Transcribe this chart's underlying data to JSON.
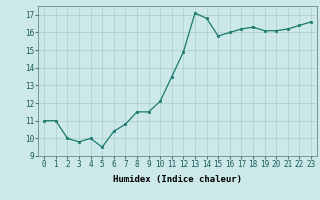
{
  "x": [
    0,
    1,
    2,
    3,
    4,
    5,
    6,
    7,
    8,
    9,
    10,
    11,
    12,
    13,
    14,
    15,
    16,
    17,
    18,
    19,
    20,
    21,
    22,
    23
  ],
  "y": [
    11.0,
    11.0,
    10.0,
    9.8,
    10.0,
    9.5,
    10.4,
    10.8,
    11.5,
    11.5,
    12.1,
    13.5,
    14.9,
    17.1,
    16.8,
    15.8,
    16.0,
    16.2,
    16.3,
    16.1,
    16.1,
    16.2,
    16.4,
    16.6
  ],
  "line_color": "#1a7a6e",
  "marker_color": "#1a7a6e",
  "bg_color": "#cce8e8",
  "grid_color": "#aacece",
  "xlabel": "Humidex (Indice chaleur)",
  "xlim": [
    -0.5,
    23.5
  ],
  "ylim": [
    9,
    17.5
  ],
  "yticks": [
    9,
    10,
    11,
    12,
    13,
    14,
    15,
    16,
    17
  ],
  "xticks": [
    0,
    1,
    2,
    3,
    4,
    5,
    6,
    7,
    8,
    9,
    10,
    11,
    12,
    13,
    14,
    15,
    16,
    17,
    18,
    19,
    20,
    21,
    22,
    23
  ],
  "label_fontsize": 6.5,
  "tick_fontsize": 5.5
}
